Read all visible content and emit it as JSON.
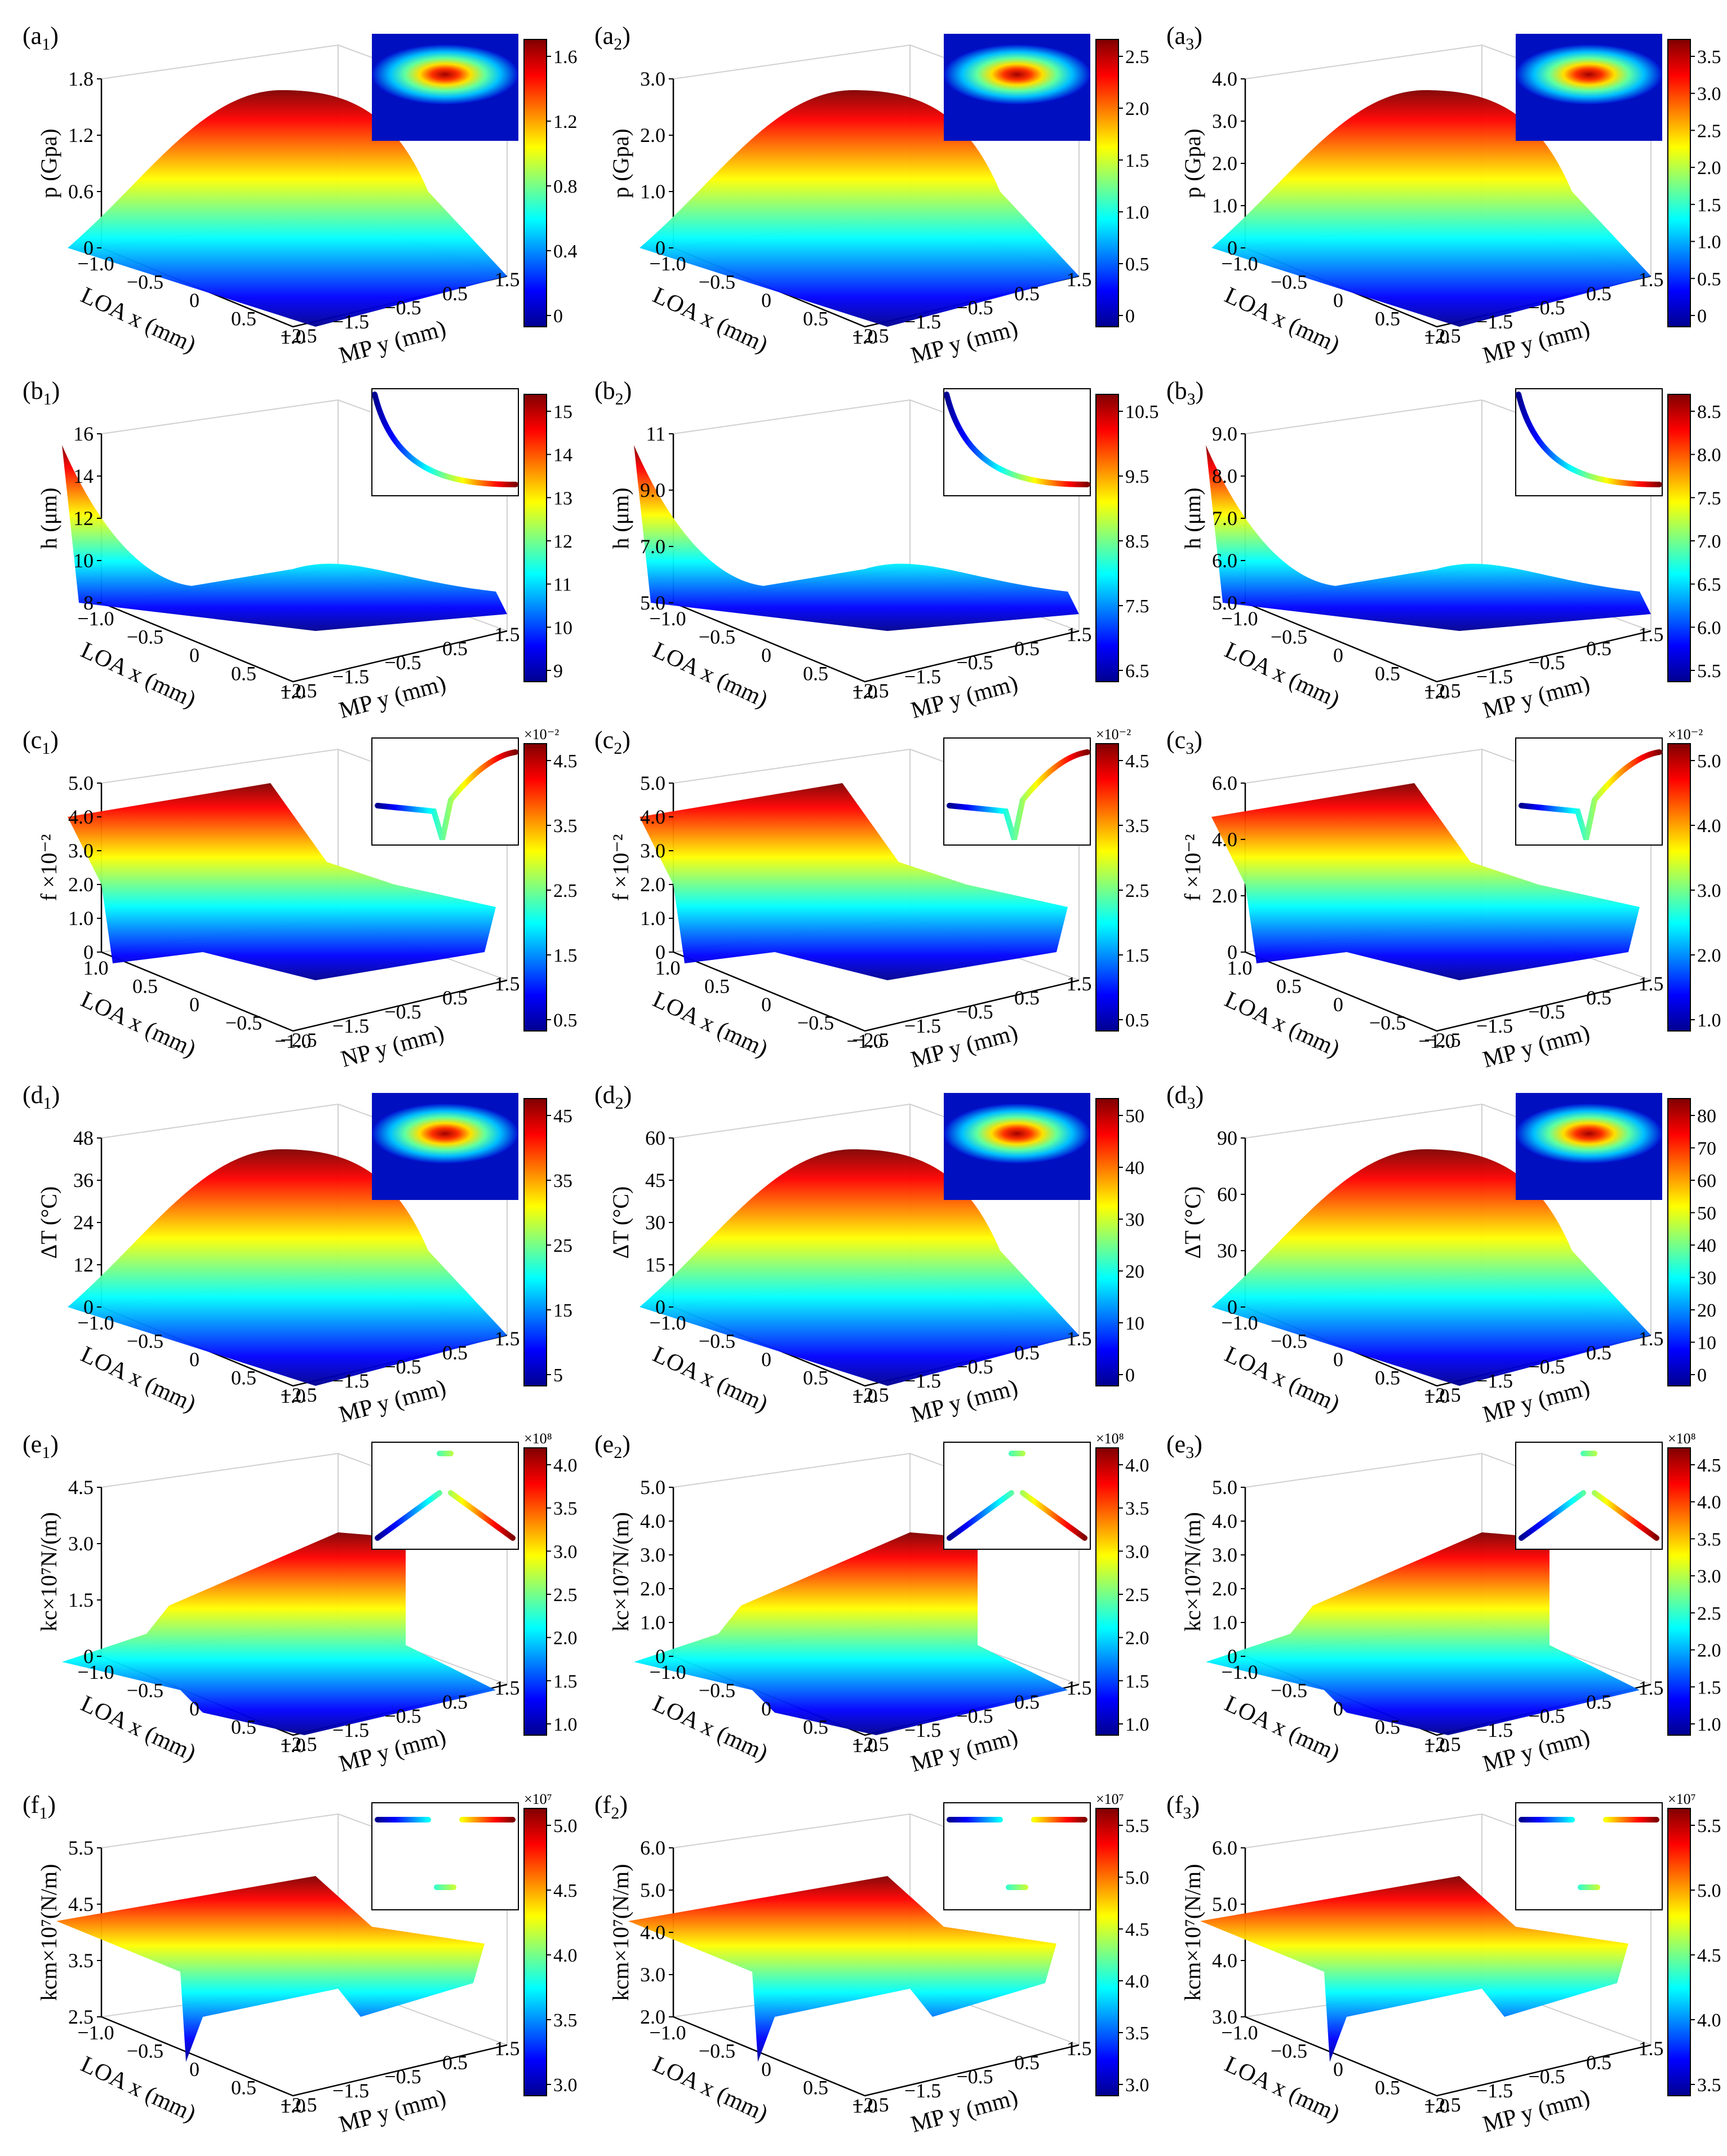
{
  "figure": {
    "axis_x_label": "LOA x (mm)",
    "axis_y_label": "MP y (mm)"
  },
  "chart_data": [
    {
      "id": "a1",
      "label": "(a",
      "sub": "1",
      "zlabel": "p (Gpa)",
      "ztop": "1.8",
      "zticks": [
        "0",
        "0.6",
        "1.2",
        "1.8"
      ],
      "xticks": [
        "−1.0",
        "−0.5",
        "0",
        "0.5",
        "1.0"
      ],
      "yticks": [
        "−2.5",
        "−1.5",
        "−0.5",
        "0.5",
        "1.5"
      ],
      "yname": "MP y (mm)",
      "cbticks": [
        "0",
        "0.4",
        "0.8",
        "1.2",
        "1.6"
      ],
      "cbexp": "",
      "shape": "dome",
      "inset": "contour"
    },
    {
      "id": "a2",
      "label": "(a",
      "sub": "2",
      "zlabel": "p (Gpa)",
      "ztop": "3.0",
      "zticks": [
        "0",
        "1.0",
        "2.0",
        "3.0"
      ],
      "xticks": [
        "−1.0",
        "−0.5",
        "0",
        "0.5",
        "1.0"
      ],
      "yticks": [
        "−2.5",
        "−1.5",
        "−0.5",
        "0.5",
        "1.5"
      ],
      "yname": "MP y (mm)",
      "cbticks": [
        "0",
        "0.5",
        "1.0",
        "1.5",
        "2.0",
        "2.5"
      ],
      "cbexp": "",
      "shape": "dome",
      "inset": "contour"
    },
    {
      "id": "a3",
      "label": "(a",
      "sub": "3",
      "zlabel": "p (Gpa)",
      "ztop": "4.0",
      "zticks": [
        "0",
        "1.0",
        "2.0",
        "3.0",
        "4.0"
      ],
      "xticks": [
        "−1.0",
        "−0.5",
        "0",
        "0.5",
        "1.0"
      ],
      "yticks": [
        "−2.5",
        "−1.5",
        "−0.5",
        "0.5",
        "1.5"
      ],
      "yname": "MP y (mm)",
      "cbticks": [
        "0",
        "0.5",
        "1.0",
        "1.5",
        "2.0",
        "2.5",
        "3.0",
        "3.5"
      ],
      "cbexp": "",
      "shape": "dome",
      "inset": "contour"
    },
    {
      "id": "b1",
      "label": "(b",
      "sub": "1",
      "zlabel": "h (μm)",
      "zticks": [
        "8",
        "10",
        "12",
        "14",
        "16"
      ],
      "xticks": [
        "−1.0",
        "−0.5",
        "0",
        "0.5",
        "1.0"
      ],
      "yticks": [
        "−2.5",
        "−1.5",
        "−0.5",
        "0.5",
        "1.5"
      ],
      "yname": "MP y (mm)",
      "cbticks": [
        "9",
        "10",
        "11",
        "12",
        "13",
        "14",
        "15"
      ],
      "cbexp": "",
      "shape": "valley",
      "inset": "curve"
    },
    {
      "id": "b2",
      "label": "(b",
      "sub": "2",
      "zlabel": "h (μm)",
      "zticks": [
        "5.0",
        "7.0",
        "9.0",
        "11"
      ],
      "xticks": [
        "−1.0",
        "−0.5",
        "0",
        "0.5",
        "1.0"
      ],
      "yticks": [
        "−2.5",
        "−1.5",
        "−0.5",
        "0.5",
        "1.5"
      ],
      "yname": "MP y (mm)",
      "cbticks": [
        "6.5",
        "7.5",
        "8.5",
        "9.5",
        "10.5"
      ],
      "cbexp": "",
      "shape": "valley",
      "inset": "curve"
    },
    {
      "id": "b3",
      "label": "(b",
      "sub": "3",
      "zlabel": "h (μm)",
      "zticks": [
        "5.0",
        "6.0",
        "7.0",
        "8.0",
        "9.0"
      ],
      "xticks": [
        "−1.0",
        "−0.5",
        "0",
        "0.5",
        "1.0"
      ],
      "yticks": [
        "−2.5",
        "−1.5",
        "−0.5",
        "0.5",
        "1.5"
      ],
      "yname": "MP y (mm)",
      "cbticks": [
        "5.5",
        "6.0",
        "6.5",
        "7.0",
        "7.5",
        "8.0",
        "8.5"
      ],
      "cbexp": "",
      "shape": "valley",
      "inset": "curve"
    },
    {
      "id": "c1",
      "label": "(c",
      "sub": "1",
      "zlabel": "f ×10⁻²",
      "zticks": [
        "0",
        "1.0",
        "2.0",
        "3.0",
        "4.0",
        "5.0"
      ],
      "xticks": [
        "1.0",
        "0.5",
        "0",
        "−0.5",
        "−1.0"
      ],
      "yticks": [
        "−2.5",
        "−1.5",
        "−0.5",
        "0.5",
        "1.5"
      ],
      "yname": "NP y (mm)",
      "cbticks": [
        "0.5",
        "1.5",
        "2.5",
        "3.5",
        "4.5"
      ],
      "cbexp": "×10⁻²",
      "shape": "step",
      "inset": "vdip"
    },
    {
      "id": "c2",
      "label": "(c",
      "sub": "2",
      "zlabel": "f ×10⁻²",
      "zticks": [
        "0",
        "1.0",
        "2.0",
        "3.0",
        "4.0",
        "5.0"
      ],
      "xticks": [
        "1.0",
        "0.5",
        "0",
        "−0.5",
        "−1.0"
      ],
      "yticks": [
        "−2.5",
        "−1.5",
        "−0.5",
        "0.5",
        "1.5"
      ],
      "yname": "MP y (mm)",
      "cbticks": [
        "0.5",
        "1.5",
        "2.5",
        "3.5",
        "4.5"
      ],
      "cbexp": "×10⁻²",
      "shape": "step",
      "inset": "vdip"
    },
    {
      "id": "c3",
      "label": "(c",
      "sub": "3",
      "zlabel": "f ×10⁻²",
      "zticks": [
        "0",
        "2.0",
        "4.0",
        "6.0"
      ],
      "xticks": [
        "1.0",
        "0.5",
        "0",
        "−0.5",
        "−1.0"
      ],
      "yticks": [
        "−2.5",
        "−1.5",
        "−0.5",
        "0.5",
        "1.5"
      ],
      "yname": "MP y (mm)",
      "cbticks": [
        "1.0",
        "2.0",
        "3.0",
        "4.0",
        "5.0"
      ],
      "cbexp": "×10⁻²",
      "shape": "step",
      "inset": "vdip"
    },
    {
      "id": "d1",
      "label": "(d",
      "sub": "1",
      "zlabel": "ΔT (°C)",
      "zticks": [
        "0",
        "12",
        "24",
        "36",
        "48"
      ],
      "xticks": [
        "−1.0",
        "−0.5",
        "0",
        "0.5",
        "1.0"
      ],
      "yticks": [
        "−2.5",
        "−1.5",
        "−0.5",
        "0.5",
        "1.5"
      ],
      "yname": "MP y (mm)",
      "cbticks": [
        "5",
        "15",
        "25",
        "35",
        "45"
      ],
      "cbexp": "",
      "shape": "dome",
      "inset": "contour"
    },
    {
      "id": "d2",
      "label": "(d",
      "sub": "2",
      "zlabel": "ΔT (°C)",
      "zticks": [
        "0",
        "15",
        "30",
        "45",
        "60"
      ],
      "xticks": [
        "−1.0",
        "−0.5",
        "0",
        "0.5",
        "1.0"
      ],
      "yticks": [
        "−2.5",
        "−1.5",
        "−0.5",
        "0.5",
        "1.5"
      ],
      "yname": "MP y (mm)",
      "cbticks": [
        "0",
        "10",
        "20",
        "30",
        "40",
        "50"
      ],
      "cbexp": "",
      "shape": "dome",
      "inset": "contour"
    },
    {
      "id": "d3",
      "label": "(d",
      "sub": "3",
      "zlabel": "ΔT (°C)",
      "zticks": [
        "0",
        "30",
        "60",
        "90"
      ],
      "xticks": [
        "−1.0",
        "−0.5",
        "0",
        "0.5",
        "1.0"
      ],
      "yticks": [
        "−2.5",
        "−1.5",
        "−0.5",
        "0.5",
        "1.5"
      ],
      "yname": "MP y (mm)",
      "cbticks": [
        "0",
        "10",
        "20",
        "30",
        "40",
        "50",
        "60",
        "70",
        "80"
      ],
      "cbexp": "",
      "shape": "dome",
      "inset": "contour"
    },
    {
      "id": "e1",
      "label": "(e",
      "sub": "1",
      "zlabel": "kc×10⁷N/(m)",
      "zticks": [
        "0",
        "1.5",
        "3.0",
        "4.5"
      ],
      "xticks": [
        "−1.0",
        "−0.5",
        "0",
        "0.5",
        "1.0"
      ],
      "yticks": [
        "−2.5",
        "−1.5",
        "−0.5",
        "0.5",
        "1.5"
      ],
      "yname": "MP y (mm)",
      "cbticks": [
        "1.0",
        "1.5",
        "2.0",
        "2.5",
        "3.0",
        "3.5",
        "4.0"
      ],
      "cbexp": "×10⁸",
      "shape": "plateau",
      "inset": "vshape"
    },
    {
      "id": "e2",
      "label": "(e",
      "sub": "2",
      "zlabel": "kc×10⁷N/(m)",
      "zticks": [
        "0",
        "1.0",
        "2.0",
        "3.0",
        "4.0",
        "5.0"
      ],
      "xticks": [
        "−1.0",
        "−0.5",
        "0",
        "0.5",
        "1.0"
      ],
      "yticks": [
        "−2.5",
        "−1.5",
        "−0.5",
        "0.5",
        "1.5"
      ],
      "yname": "MP y (mm)",
      "cbticks": [
        "1.0",
        "1.5",
        "2.0",
        "2.5",
        "3.0",
        "3.5",
        "4.0"
      ],
      "cbexp": "×10⁸",
      "shape": "plateau",
      "inset": "vshape"
    },
    {
      "id": "e3",
      "label": "(e",
      "sub": "3",
      "zlabel": "kc×10⁷N/(m)",
      "zticks": [
        "0",
        "1.0",
        "2.0",
        "3.0",
        "4.0",
        "5.0"
      ],
      "xticks": [
        "−1.0",
        "−0.5",
        "0",
        "0.5",
        "1.0"
      ],
      "yticks": [
        "−2.5",
        "−1.5",
        "−0.5",
        "0.5",
        "1.5"
      ],
      "yname": "MP y (mm)",
      "cbticks": [
        "1.0",
        "1.5",
        "2.0",
        "2.5",
        "3.0",
        "3.5",
        "4.0",
        "4.5"
      ],
      "cbexp": "×10⁸",
      "shape": "plateau",
      "inset": "vshape"
    },
    {
      "id": "f1",
      "label": "(f",
      "sub": "1",
      "zlabel": "kcm×10⁷(N/m)",
      "zticks": [
        "2.5",
        "3.5",
        "4.5",
        "5.5"
      ],
      "xticks": [
        "−1.0",
        "−0.5",
        "0",
        "0.5",
        "1.0"
      ],
      "yticks": [
        "−2.5",
        "−1.5",
        "−0.5",
        "0.5",
        "1.5"
      ],
      "yname": "MP y (mm)",
      "cbticks": [
        "3.0",
        "3.5",
        "4.0",
        "4.5",
        "5.0"
      ],
      "cbexp": "×10⁷",
      "shape": "notch",
      "inset": "gap"
    },
    {
      "id": "f2",
      "label": "(f",
      "sub": "2",
      "zlabel": "kcm×10⁷(N/m)",
      "zticks": [
        "2.0",
        "3.0",
        "4.0",
        "5.0",
        "6.0"
      ],
      "xticks": [
        "−1.0",
        "−0.5",
        "0",
        "0.5",
        "1.0"
      ],
      "yticks": [
        "−2.5",
        "−1.5",
        "−0.5",
        "0.5",
        "1.5"
      ],
      "yname": "MP y (mm)",
      "cbticks": [
        "3.0",
        "3.5",
        "4.0",
        "4.5",
        "5.0",
        "5.5"
      ],
      "cbexp": "×10⁷",
      "shape": "notch",
      "inset": "gap"
    },
    {
      "id": "f3",
      "label": "(f",
      "sub": "3",
      "zlabel": "kcm×10⁷(N/m)",
      "zticks": [
        "3.0",
        "4.0",
        "5.0",
        "6.0"
      ],
      "xticks": [
        "−1.0",
        "−0.5",
        "0",
        "0.5",
        "1.0"
      ],
      "yticks": [
        "−2.5",
        "−1.5",
        "−0.5",
        "0.5",
        "1.5"
      ],
      "yname": "MP y (mm)",
      "cbticks": [
        "3.5",
        "4.0",
        "4.5",
        "5.0",
        "5.5"
      ],
      "cbexp": "×10⁷",
      "shape": "notch",
      "inset": "gap"
    }
  ]
}
